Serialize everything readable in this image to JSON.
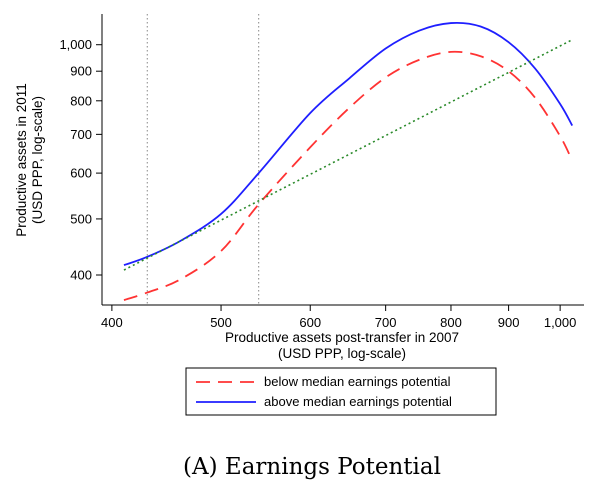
{
  "caption": "(A) Earnings Potential",
  "chart_data": {
    "type": "line",
    "title": "",
    "xlabel": [
      "Productive assets post-transfer in 2007",
      "(USD PPP, log-scale)"
    ],
    "ylabel": [
      "Productive assets in 2011",
      "(USD PPP, log-scale)"
    ],
    "x_scale": "log",
    "y_scale": "log",
    "xlim": [
      392,
      1050
    ],
    "ylim": [
      355,
      1130
    ],
    "x_ticks": [
      400,
      500,
      600,
      700,
      800,
      900,
      1000
    ],
    "x_tick_labels": [
      "400",
      "500",
      "600",
      "700",
      "800",
      "900",
      "1,000"
    ],
    "y_ticks": [
      400,
      500,
      600,
      700,
      800,
      900,
      1000
    ],
    "y_tick_labels": [
      "400",
      "500",
      "600",
      "700",
      "800",
      "900",
      "1,000"
    ],
    "grid": false,
    "vlines": [
      430,
      540
    ],
    "legend": {
      "placement": "bottom"
    },
    "series": [
      {
        "name": "below median earnings potential",
        "color": "#ff3333",
        "dash": "dashed",
        "x": [
          410,
          430,
          460,
          500,
          540,
          600,
          650,
          700,
          750,
          800,
          850,
          900,
          950,
          1000,
          1025
        ],
        "y": [
          362,
          373,
          393,
          440,
          530,
          665,
          778,
          878,
          942,
          972,
          955,
          900,
          810,
          695,
          630
        ]
      },
      {
        "name": "above median earnings potential",
        "color": "#1f1fff",
        "dash": "solid",
        "x": [
          410,
          430,
          460,
          500,
          540,
          600,
          650,
          700,
          750,
          800,
          850,
          900,
          950,
          1000,
          1025
        ],
        "y": [
          416,
          430,
          458,
          510,
          600,
          762,
          875,
          985,
          1058,
          1090,
          1075,
          1010,
          910,
          790,
          725
        ]
      },
      {
        "name": "",
        "color": "#2a8a2a",
        "dash": "dotted",
        "x": [
          410,
          1025
        ],
        "y": [
          408,
          1020
        ]
      }
    ]
  }
}
